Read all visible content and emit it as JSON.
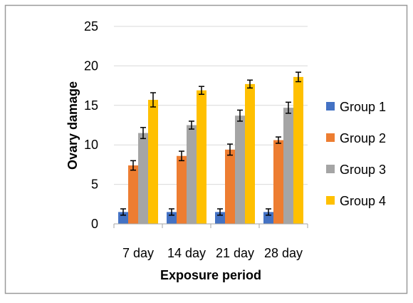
{
  "chart_data": {
    "type": "bar",
    "title": "",
    "xlabel": "Exposure period",
    "ylabel": "Ovary damage",
    "categories": [
      "7 day",
      "14 day",
      "21 day",
      "28 day"
    ],
    "ylim": [
      0,
      25
    ],
    "yticks": [
      "0",
      "5",
      "10",
      "15",
      "20",
      "25"
    ],
    "grid": true,
    "legend_position": "right",
    "series": [
      {
        "name": "Group 1",
        "color": "#4472C4",
        "values": [
          1.5,
          1.5,
          1.5,
          1.5
        ],
        "errors": [
          0.4,
          0.4,
          0.4,
          0.4
        ]
      },
      {
        "name": "Group 2",
        "color": "#ED7D31",
        "values": [
          7.4,
          8.6,
          9.4,
          10.6
        ],
        "errors": [
          0.6,
          0.6,
          0.7,
          0.4
        ]
      },
      {
        "name": "Group 3",
        "color": "#A5A5A5",
        "values": [
          11.5,
          12.5,
          13.7,
          14.7
        ],
        "errors": [
          0.7,
          0.5,
          0.7,
          0.7
        ]
      },
      {
        "name": "Group 4",
        "color": "#FFC000",
        "values": [
          15.7,
          16.9,
          17.7,
          18.6
        ],
        "errors": [
          0.9,
          0.5,
          0.5,
          0.6
        ]
      }
    ]
  }
}
